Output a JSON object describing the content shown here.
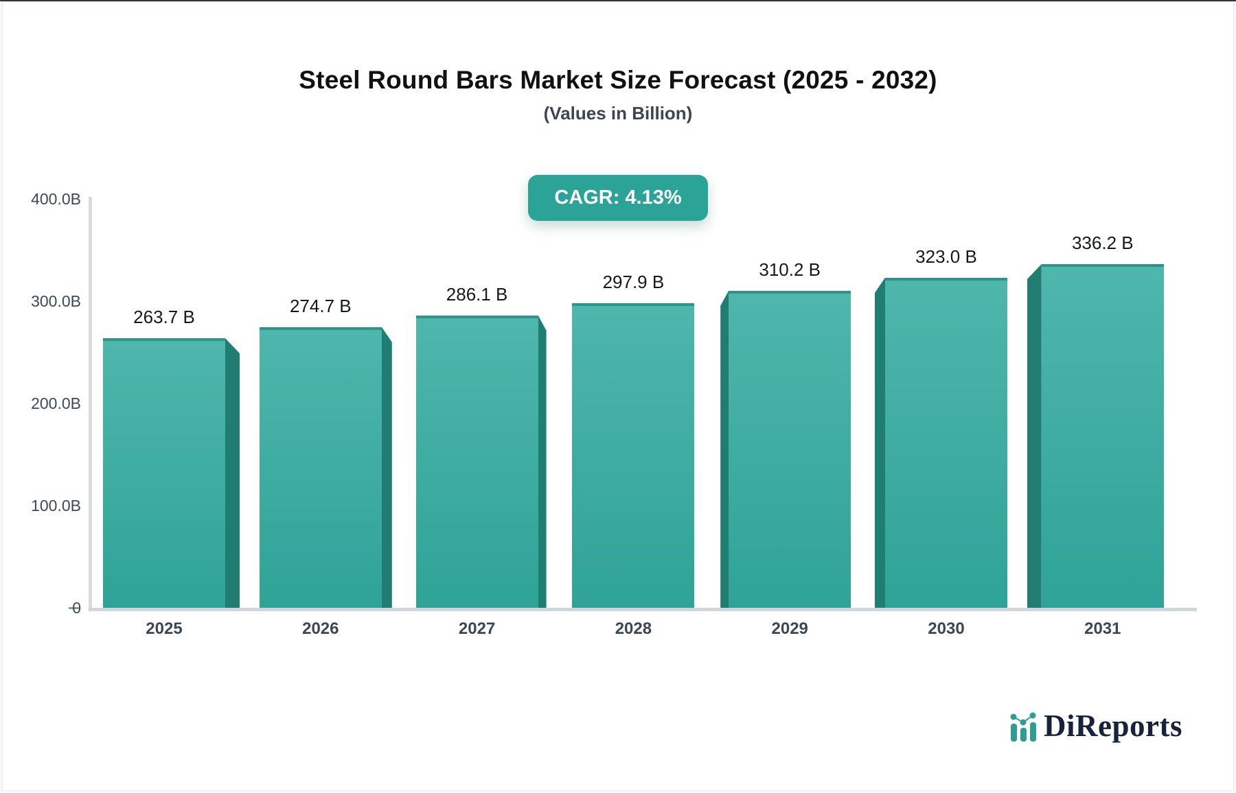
{
  "page": {
    "top_bar_color": "#333639",
    "background": "#f7f9fa",
    "card_background": "#ffffff"
  },
  "header": {
    "title": "Steel Round Bars Market Size Forecast (2025 - 2032)",
    "subtitle": "(Values in Billion)"
  },
  "badge": {
    "label": "CAGR: 4.13%",
    "background": "#2ba396",
    "text_color": "#ffffff"
  },
  "chart_data": {
    "type": "bar",
    "title": "Steel Round Bars Market Size Forecast (2025 - 2032)",
    "subtitle": "(Values in Billion)",
    "cagr_label": "CAGR: 4.13%",
    "categories": [
      "2025",
      "2026",
      "2027",
      "2028",
      "2029",
      "2030",
      "2031"
    ],
    "values": [
      263.7,
      274.7,
      286.1,
      297.9,
      310.2,
      323.0,
      336.2
    ],
    "value_labels": [
      "263.7 B",
      "274.7 B",
      "286.1 B",
      "297.9 B",
      "310.2 B",
      "323.0 B",
      "336.2 B"
    ],
    "y_ticks": [
      "400.0B",
      "300.0B",
      "200.0B",
      "100.0B",
      "0"
    ],
    "ylim": [
      0,
      400
    ],
    "grid": "off",
    "legend": "none",
    "bar_color_top": "#4fb6ac",
    "bar_color_bottom": "#2fa397",
    "bar_top_edge_color": "#2b958b",
    "bar_side_color": "#1f7d71",
    "axis_color": "#d7dadf",
    "tick_text_color": "#3d4956",
    "value_text_color": "#15181b"
  },
  "logo": {
    "text": "DiReports",
    "text_color": "#16233b",
    "icon_color": "#2e9d92"
  }
}
